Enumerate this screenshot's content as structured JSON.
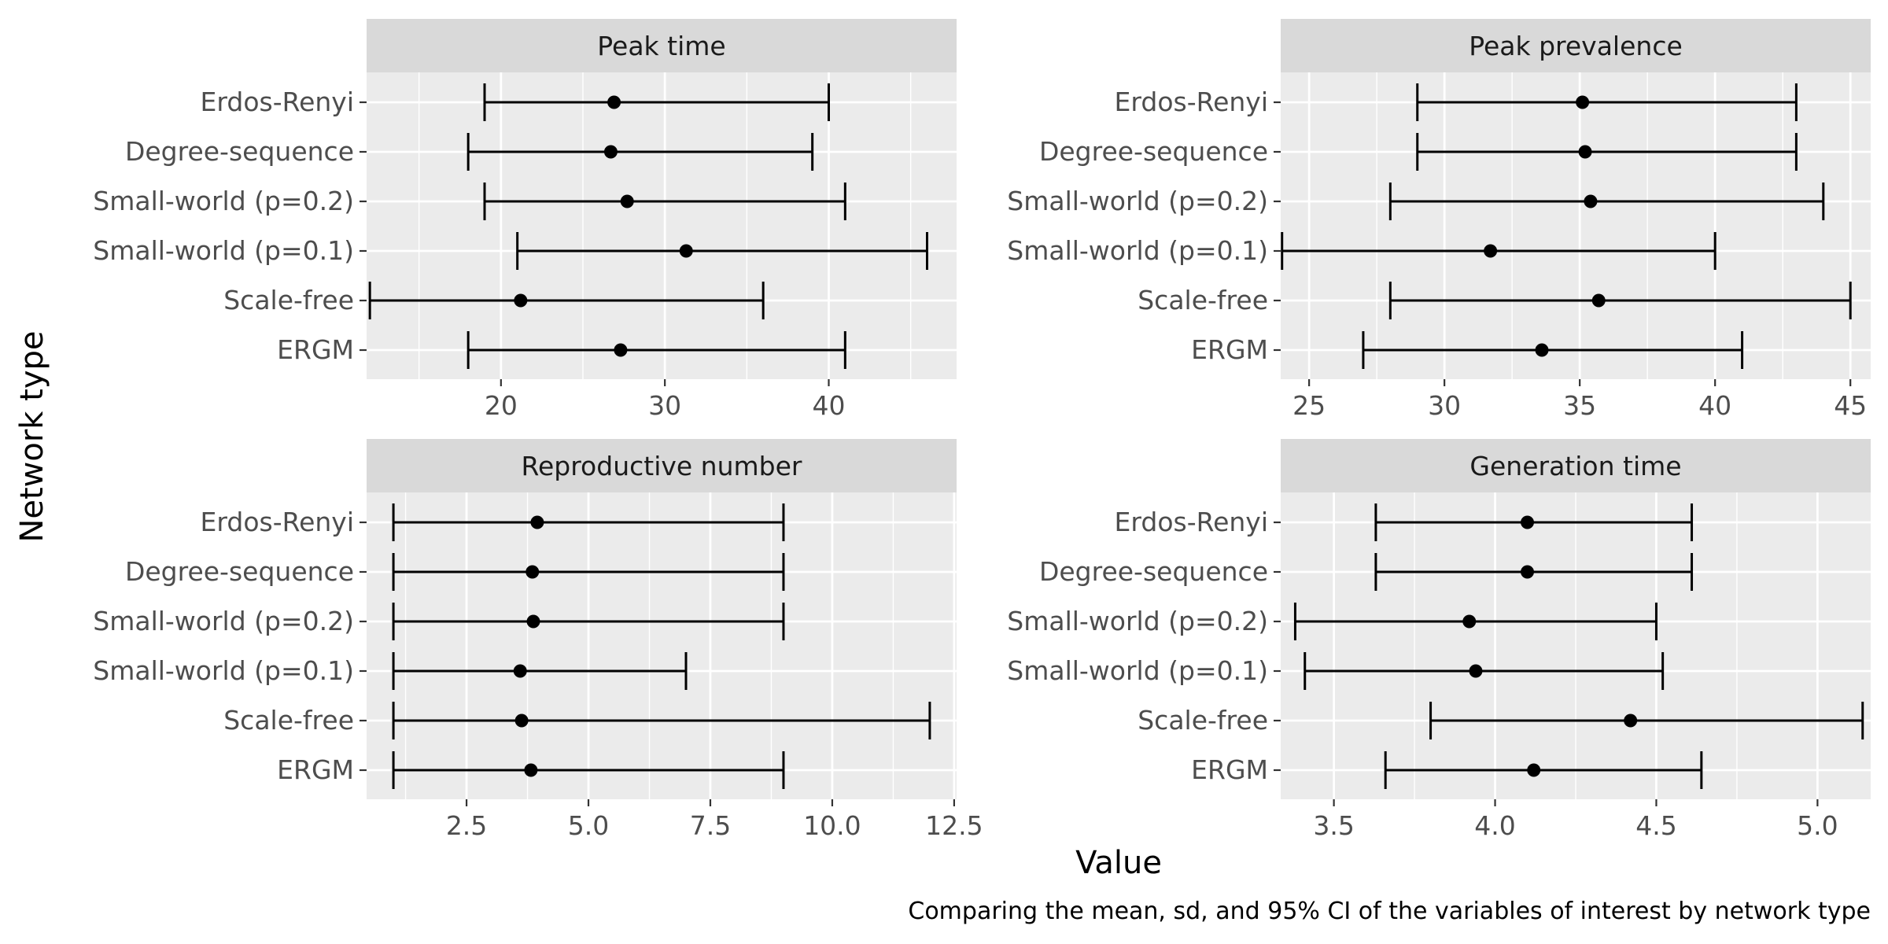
{
  "chart_data": {
    "type": "errorbar",
    "facet_layout": "2x2",
    "xlabel": "Value",
    "ylabel": "Network type",
    "caption": "Comparing the mean, sd, and 95% CI of the variables of interest by network type",
    "categories": [
      "Erdos-Renyi",
      "Degree-sequence",
      "Small-world (p=0.2)",
      "Small-world (p=0.1)",
      "Scale-free",
      "ERGM"
    ],
    "grid": true,
    "legend": "none",
    "colors": {
      "panel_bg": "#ebebeb",
      "strip_bg": "#d9d9d9",
      "grid": "#ffffff",
      "mark": "#000000",
      "tick_text": "#4d4d4d"
    },
    "panels": [
      {
        "title": "Peak time",
        "xlim": [
          11.8,
          47.8
        ],
        "xticks": [
          20,
          30,
          40
        ],
        "xtick_labels": [
          "20",
          "30",
          "40"
        ],
        "series": [
          {
            "category": "Erdos-Renyi",
            "mean": 26.9,
            "lower": 19,
            "upper": 40
          },
          {
            "category": "Degree-sequence",
            "mean": 26.7,
            "lower": 18,
            "upper": 39
          },
          {
            "category": "Small-world (p=0.2)",
            "mean": 27.7,
            "lower": 19,
            "upper": 41
          },
          {
            "category": "Small-world (p=0.1)",
            "mean": 31.3,
            "lower": 21,
            "upper": 46
          },
          {
            "category": "Scale-free",
            "mean": 21.2,
            "lower": 12,
            "upper": 36
          },
          {
            "category": "ERGM",
            "mean": 27.3,
            "lower": 18,
            "upper": 41
          }
        ]
      },
      {
        "title": "Peak prevalence",
        "xlim": [
          23.95,
          45.75
        ],
        "xticks": [
          25,
          30,
          35,
          40,
          45
        ],
        "xtick_labels": [
          "25",
          "30",
          "35",
          "40",
          "45"
        ],
        "series": [
          {
            "category": "Erdos-Renyi",
            "mean": 35.1,
            "lower": 29,
            "upper": 43
          },
          {
            "category": "Degree-sequence",
            "mean": 35.2,
            "lower": 29,
            "upper": 43
          },
          {
            "category": "Small-world (p=0.2)",
            "mean": 35.4,
            "lower": 28,
            "upper": 44
          },
          {
            "category": "Small-world (p=0.1)",
            "mean": 31.7,
            "lower": 24,
            "upper": 40
          },
          {
            "category": "Scale-free",
            "mean": 35.7,
            "lower": 28,
            "upper": 45
          },
          {
            "category": "ERGM",
            "mean": 33.6,
            "lower": 27,
            "upper": 41
          }
        ]
      },
      {
        "title": "Reproductive number",
        "xlim": [
          0.45,
          12.55
        ],
        "xticks": [
          2.5,
          5.0,
          7.5,
          10.0,
          12.5
        ],
        "xtick_labels": [
          "2.5",
          "5.0",
          "7.5",
          "10.0",
          "12.5"
        ],
        "series": [
          {
            "category": "Erdos-Renyi",
            "mean": 3.95,
            "lower": 1,
            "upper": 9
          },
          {
            "category": "Degree-sequence",
            "mean": 3.85,
            "lower": 1,
            "upper": 9
          },
          {
            "category": "Small-world (p=0.2)",
            "mean": 3.87,
            "lower": 1,
            "upper": 9
          },
          {
            "category": "Small-world (p=0.1)",
            "mean": 3.6,
            "lower": 1,
            "upper": 7
          },
          {
            "category": "Scale-free",
            "mean": 3.63,
            "lower": 1,
            "upper": 12
          },
          {
            "category": "ERGM",
            "mean": 3.82,
            "lower": 1,
            "upper": 9
          }
        ]
      },
      {
        "title": "Generation time",
        "xlim": [
          3.335,
          5.165
        ],
        "xticks": [
          3.5,
          4.0,
          4.5,
          5.0
        ],
        "xtick_labels": [
          "3.5",
          "4.0",
          "4.5",
          "5.0"
        ],
        "series": [
          {
            "category": "Erdos-Renyi",
            "mean": 4.1,
            "lower": 3.63,
            "upper": 4.61
          },
          {
            "category": "Degree-sequence",
            "mean": 4.1,
            "lower": 3.63,
            "upper": 4.61
          },
          {
            "category": "Small-world (p=0.2)",
            "mean": 3.92,
            "lower": 3.38,
            "upper": 4.5
          },
          {
            "category": "Small-world (p=0.1)",
            "mean": 3.94,
            "lower": 3.41,
            "upper": 4.52
          },
          {
            "category": "Scale-free",
            "mean": 4.42,
            "lower": 3.8,
            "upper": 5.14
          },
          {
            "category": "ERGM",
            "mean": 4.12,
            "lower": 3.66,
            "upper": 4.64
          }
        ]
      }
    ]
  }
}
